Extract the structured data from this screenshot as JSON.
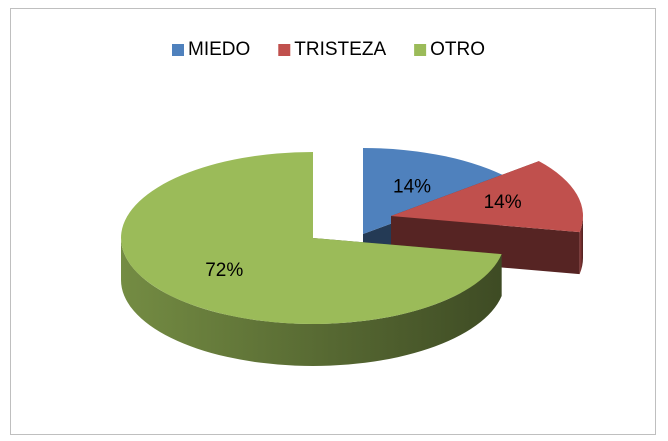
{
  "chart_data": {
    "type": "pie",
    "categories": [
      "MIEDO",
      "TRISTEZA",
      "OTRO"
    ],
    "values": [
      14,
      14,
      72
    ],
    "value_labels": [
      "14%",
      "14%",
      "72%"
    ],
    "colors": [
      "#4f81bd",
      "#c0504d",
      "#9bbb59"
    ],
    "legend": "top"
  }
}
